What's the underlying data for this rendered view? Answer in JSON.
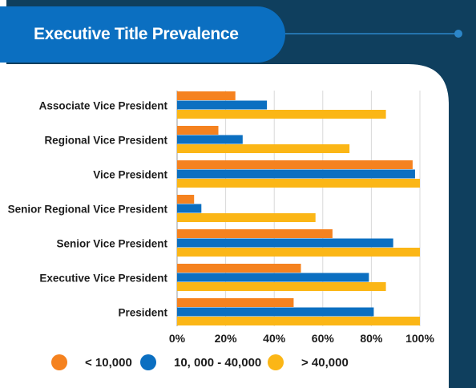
{
  "title": "Executive Title Prevalence",
  "colors": {
    "background_dark": "#0f3f5e",
    "title_bar": "#0b6fc1",
    "card": "#ffffff",
    "grid": "#d9d9d9"
  },
  "chart_data": {
    "type": "bar",
    "orientation": "horizontal",
    "title": "Executive Title Prevalence",
    "categories": [
      "Associate Vice President",
      "Regional Vice President",
      "Vice President",
      "Senior Regional Vice President",
      "Senior Vice President",
      "Executive Vice President",
      "President"
    ],
    "series": [
      {
        "name": "< 10,000",
        "color": "#f5821f",
        "values": [
          24,
          17,
          97,
          7,
          64,
          51,
          48
        ]
      },
      {
        "name": "10, 000 - 40,000",
        "color": "#0b6fc1",
        "values": [
          37,
          27,
          98,
          10,
          89,
          79,
          81
        ]
      },
      {
        "name": "> 40,000",
        "color": "#fbb616",
        "values": [
          86,
          71,
          100,
          57,
          100,
          86,
          100
        ]
      }
    ],
    "xlim": [
      0,
      100
    ],
    "xticks": [
      "0%",
      "20%",
      "40%",
      "60%",
      "80%",
      "100%"
    ],
    "xtick_values": [
      0,
      20,
      40,
      60,
      80,
      100
    ],
    "grid": true,
    "legend_position": "bottom"
  }
}
